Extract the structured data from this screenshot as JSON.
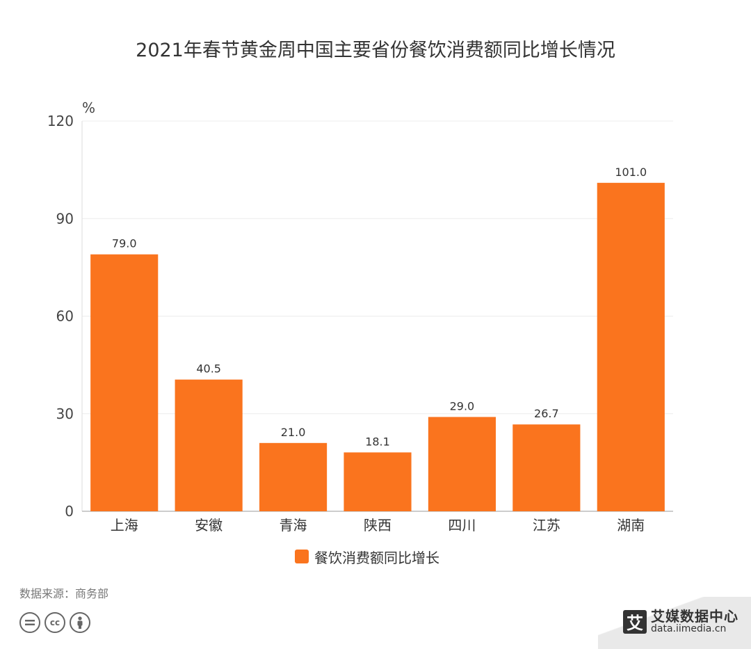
{
  "chart_data": {
    "type": "bar",
    "title": "2021年春节黄金周中国主要省份餐饮消费额同比增长情况",
    "ylabel": "%",
    "ylim": [
      0,
      120
    ],
    "yticks": [
      "0",
      "30",
      "60",
      "90",
      "120"
    ],
    "categories": [
      "上海",
      "安徽",
      "青海",
      "陕西",
      "四川",
      "江苏",
      "湖南"
    ],
    "series": [
      {
        "name": "餐饮消费额同比增长",
        "values": [
          79.0,
          40.5,
          21.0,
          18.1,
          29.0,
          26.7,
          101.0
        ],
        "labels": [
          "79.0",
          "40.5",
          "21.0",
          "18.1",
          "29.0",
          "26.7",
          "101.0"
        ],
        "color": "#FA741E"
      }
    ],
    "grid": true,
    "legend": "bottom-center"
  },
  "footer": {
    "source": "数据来源：商务部",
    "license_icons": [
      "equals-icon",
      "cc-icon",
      "person-icon"
    ],
    "brand_name": "艾媒数据中心",
    "brand_mark": "艾",
    "brand_url": "data.iimedia.cn"
  }
}
